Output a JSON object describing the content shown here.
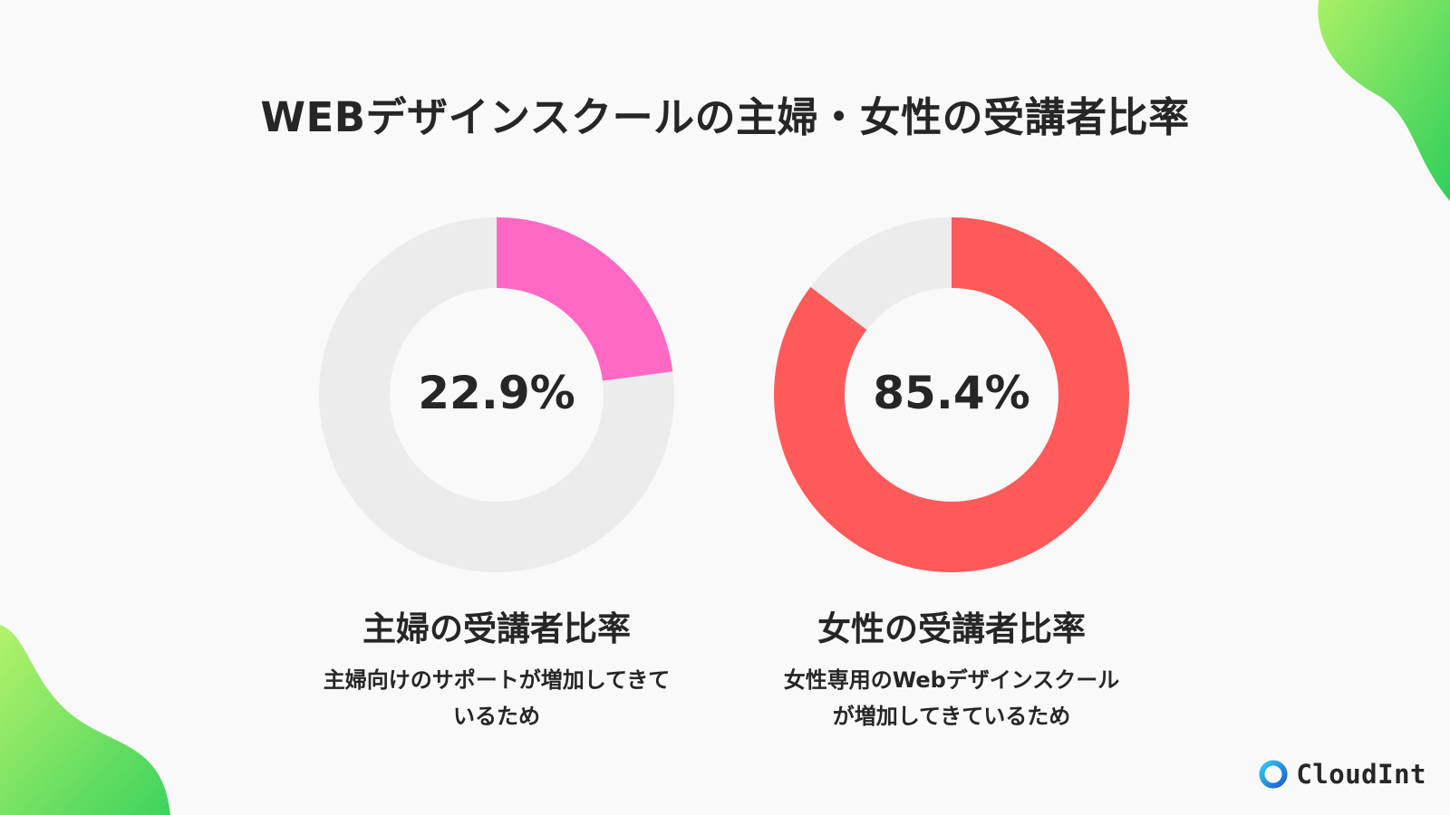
{
  "title": "WEBデザインスクールの主婦・女性の受講者比率",
  "colors": {
    "housewife": "#ff69c4",
    "women": "#ff5a5a",
    "remainder": "#ececec",
    "text": "#262626",
    "blob_green": "#45d858",
    "blob_light": "#a8f065",
    "brand_blue": "#1b8ee6"
  },
  "chart_data": [
    {
      "type": "pie",
      "donut": true,
      "labels": [
        "主婦の受講者比率"
      ],
      "values": [
        22.9
      ],
      "center_label": "22.9%",
      "title": "主婦の受講者比率",
      "description": [
        "主婦向けのサポートが増加してきて",
        "いるため"
      ]
    },
    {
      "type": "pie",
      "donut": true,
      "labels": [
        "女性の受講者比率"
      ],
      "values": [
        85.4
      ],
      "center_label": "85.4%",
      "title": "女性の受講者比率",
      "description": [
        "女性専用のWebデザインスクール",
        "が増加してきているため"
      ]
    }
  ],
  "brand": {
    "name": "CloudInt"
  }
}
